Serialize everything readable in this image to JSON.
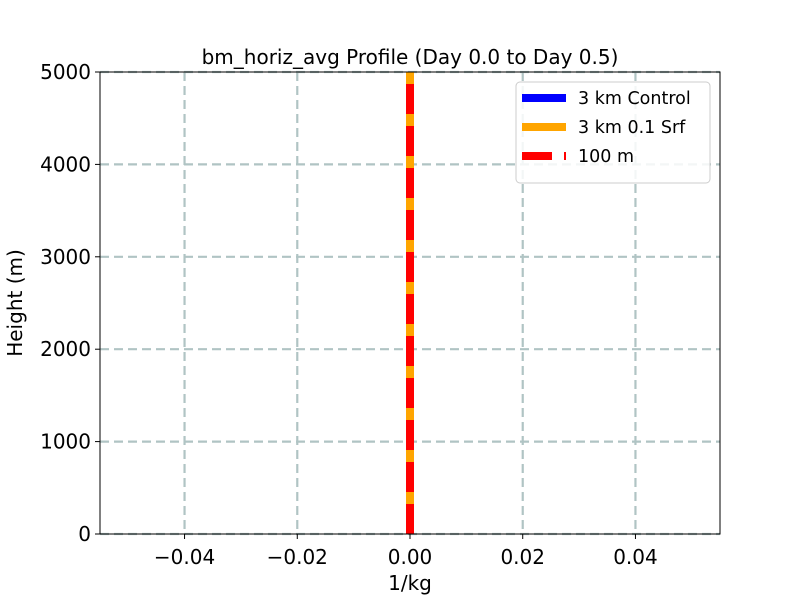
{
  "chart_data": {
    "type": "line",
    "title": "bm_horiz_avg Profile (Day 0.0 to Day 0.5)",
    "xlabel": "1/kg",
    "ylabel": "Height (m)",
    "xlim": [
      -0.055,
      0.055
    ],
    "ylim": [
      0,
      5000
    ],
    "xticks": [
      -0.04,
      -0.02,
      0.0,
      0.02,
      0.04
    ],
    "xtick_labels": [
      "−0.04",
      "−0.02",
      "0.00",
      "0.02",
      "0.04"
    ],
    "yticks": [
      0,
      1000,
      2000,
      3000,
      4000,
      5000
    ],
    "ytick_labels": [
      "0",
      "1000",
      "2000",
      "3000",
      "4000",
      "5000"
    ],
    "grid": true,
    "legend_position": "top-right",
    "series": [
      {
        "name": "3 km Control",
        "color": "#0000ff",
        "style": "solid",
        "x": [
          0.0,
          0.0
        ],
        "y": [
          0,
          5000
        ]
      },
      {
        "name": "3 km 0.1 Srf",
        "color": "#ffa500",
        "style": "solid",
        "x": [
          0.0,
          0.0
        ],
        "y": [
          0,
          5000
        ]
      },
      {
        "name": "100 m",
        "color": "#ff0000",
        "style": "dashed",
        "x": [
          0.0,
          0.0
        ],
        "y": [
          0,
          5000
        ]
      }
    ]
  }
}
